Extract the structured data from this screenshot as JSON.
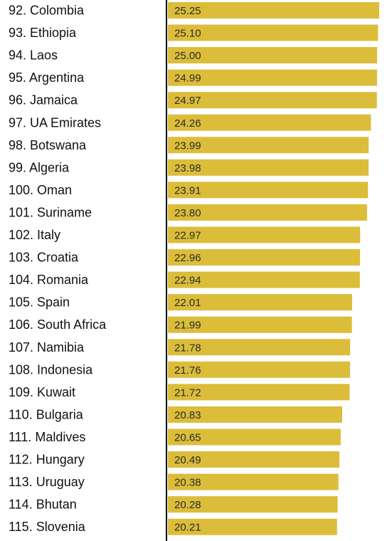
{
  "chart_data": {
    "type": "bar",
    "orientation": "horizontal",
    "categories": [
      "92. Colombia",
      "93. Ethiopia",
      "94. Laos",
      "95. Argentina",
      "96. Jamaica",
      "97. UA Emirates",
      "98. Botswana",
      "99. Algeria",
      "100. Oman",
      "101. Suriname",
      "102. Italy",
      "103. Croatia",
      "104. Romania",
      "105. Spain",
      "106. South Africa",
      "107. Namibia",
      "108. Indonesia",
      "109. Kuwait",
      "110. Bulgaria",
      "111. Maldives",
      "112. Hungary",
      "113. Uruguay",
      "114. Bhutan",
      "115. Slovenia"
    ],
    "values": [
      25.25,
      25.1,
      25.0,
      24.99,
      24.97,
      24.26,
      23.99,
      23.98,
      23.91,
      23.8,
      22.97,
      22.96,
      22.94,
      22.01,
      21.99,
      21.78,
      21.76,
      21.72,
      20.83,
      20.65,
      20.49,
      20.38,
      20.28,
      20.21
    ],
    "value_labels": [
      "25.25",
      "25.10",
      "25.00",
      "24.99",
      "24.97",
      "24.26",
      "23.99",
      "23.98",
      "23.91",
      "23.80",
      "22.97",
      "22.96",
      "22.94",
      "22.01",
      "21.99",
      "21.78",
      "21.76",
      "21.72",
      "20.83",
      "20.65",
      "20.49",
      "20.38",
      "20.28",
      "20.21"
    ],
    "title": "",
    "xlabel": "",
    "ylabel": "",
    "grid": false,
    "legend": "none",
    "colors": {
      "bar": "#dbbd3a",
      "axis": "#000000",
      "label": "#111111",
      "value_label": "#2b2b2b"
    }
  }
}
